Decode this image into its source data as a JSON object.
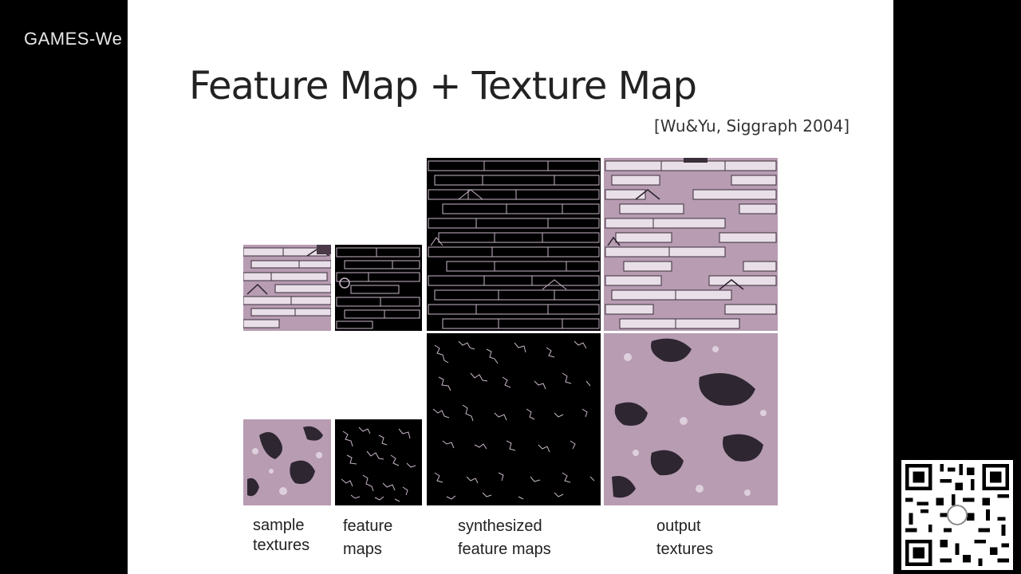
{
  "watermark": {
    "text": "GAMES-We"
  },
  "slide": {
    "title": "Feature Map + Texture Map",
    "citation": "[Wu&Yu, Siggraph 2004]"
  },
  "captions": {
    "sample_textures": [
      "sample",
      "textures"
    ],
    "feature_maps": [
      "feature",
      "maps"
    ],
    "synthesized_feature_maps": [
      "synthesized",
      "feature maps"
    ],
    "output_textures": [
      "output",
      "textures"
    ]
  },
  "colors": {
    "texture_mauve": "#b79cb2",
    "texture_dark": "#2e2630",
    "feature_bg": "#000000",
    "feature_line": "#c8b6c8"
  },
  "icons": {
    "qr": "qr-code-icon"
  }
}
